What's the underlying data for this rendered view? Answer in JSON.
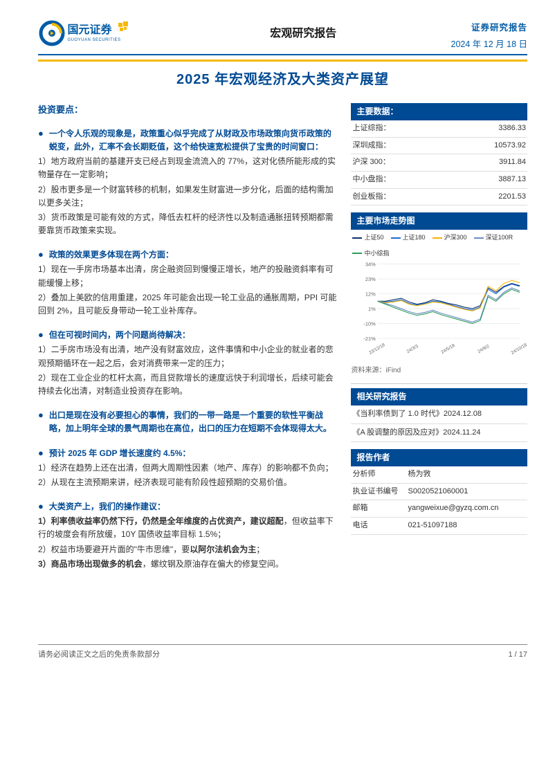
{
  "header": {
    "brand_cn": "国元证券",
    "brand_en": "GUOYUAN SECURITIES",
    "logo_circle": "#005ba6",
    "logo_accent": "#f6b800",
    "center_title": "宏观研究报告",
    "right_top": "证券研究报告",
    "date": "2024 年 12 月 18 日",
    "main_title": "2025 年宏观经济及大类资产展望",
    "accent_bar": "#f6b800",
    "underline": "#005ba6"
  },
  "left": {
    "section_title": "投资要点：",
    "g1": {
      "head": "一个令人乐观的现象是，政策重心似乎完成了从财政及市场政策向货币政策的蜕变，此外，汇率不会长期贬值，这个给快速宽松提供了宝贵的时间窗口：",
      "p1": "1）地方政府当前的基建开支已经占到现金流流入的 77%，这对化债所能形成的实物量存在一定影响；",
      "p2": "2）股市更多是一个财富转移的机制，如果发生财富进一步分化，后面的结构需加以更多关注；",
      "p3": "3）货币政策是可能有效的方式，降低去杠杆的经济性以及制造通胀扭转预期都需要靠货币政策来实现。"
    },
    "g2": {
      "head": "政策的效果更多体现在两个方面：",
      "p1": "1）现在一手房市场基本出清，房企融资回到慢慢正增长，地产的投融资斜率有可能缓慢上移；",
      "p2": "2）叠加上美欧的信用重建，2025 年可能会出现一轮工业品的通胀周期，PPI 可能回到 2%，且可能反身带动一轮工业补库存。"
    },
    "g3": {
      "head": "但在可视时间内，两个问题尚待解决：",
      "p1": "1）二手房市场没有出清，地产没有财富效应，这件事情和中小企业的就业者的悲观预期循环在一起之后，会对消费带来一定的压力；",
      "p2": "2）现在工业企业的杠杆太高，而且贷款增长的速度远快于利润增长，后续可能会持续去化出清，对制造业投资存在影响。"
    },
    "g4": {
      "head": "出口是现在没有必要担心的事情，我们的一带一路是一个重要的软性平衡战略，加上明年全球的景气周期也在高位，出口的压力在短期不会体现得太大。"
    },
    "g5": {
      "head": "预计 2025 年 GDP 增长速度约 4.5%：",
      "p1": "1）经济在趋势上还在出清，但两大周期性因素（地产、库存）的影响都不负向；",
      "p2": "2）从现在主流预期来讲，经济表现可能有阶段性超预期的交易价值。"
    },
    "g6": {
      "head": "大类资产上，我们的操作建议：",
      "p1a": "1）利率债收益率仍然下行，仍然是全年维度的占优资产，建议超配",
      "p1b": "，但收益率下行的坡度会有所放缓，10Y 国债收益率目标 1.5%；",
      "p2a": "2）权益市场要避开片面的\"牛市思维\"，要",
      "p2b": "以阿尔法机会为主",
      "p2c": "；",
      "p3a": "3）商品市场出现做多的机会",
      "p3b": "，螺纹钢及原油存在偏大的修复空间。"
    }
  },
  "right": {
    "data_header": "主要数据：",
    "data_rows": [
      {
        "label": "上证综指：",
        "value": "3386.33"
      },
      {
        "label": "深圳成指：",
        "value": "10573.92"
      },
      {
        "label": "沪深 300：",
        "value": "3911.84"
      },
      {
        "label": "中小盘指：",
        "value": "3887.13"
      },
      {
        "label": "创业板指：",
        "value": "2201.53"
      }
    ],
    "chart_header": "主要市场走势图",
    "chart": {
      "legend": [
        {
          "label": "上证50",
          "color": "#0a2f6b"
        },
        {
          "label": "上证180",
          "color": "#1e6bd6"
        },
        {
          "label": "沪深300",
          "color": "#f5b400"
        },
        {
          "label": "深证100R",
          "color": "#6a8bc4"
        },
        {
          "label": "中小综指",
          "color": "#2e9b5c"
        }
      ],
      "y_ticks": [
        "34%",
        "23%",
        "12%",
        "1%",
        "-10%",
        "-21%"
      ],
      "x_ticks": [
        "23/12/18",
        "24/3/3",
        "24/5/18",
        "24/8/2",
        "24/10/18"
      ],
      "grid_color": "#d9d9d9",
      "bg": "#ffffff",
      "series": {
        "s1": {
          "color": "#0a2f6b",
          "points": [
            0.5,
            0.5,
            0.52,
            0.54,
            0.49,
            0.46,
            0.48,
            0.52,
            0.5,
            0.47,
            0.45,
            0.42,
            0.4,
            0.44,
            0.68,
            0.62,
            0.7,
            0.74,
            0.71
          ]
        },
        "s2": {
          "color": "#1e6bd6",
          "points": [
            0.5,
            0.49,
            0.5,
            0.52,
            0.47,
            0.45,
            0.47,
            0.5,
            0.49,
            0.46,
            0.43,
            0.4,
            0.38,
            0.42,
            0.66,
            0.6,
            0.69,
            0.73,
            0.7
          ]
        },
        "s3": {
          "color": "#f5b400",
          "points": [
            0.5,
            0.48,
            0.49,
            0.51,
            0.46,
            0.44,
            0.46,
            0.49,
            0.48,
            0.45,
            0.42,
            0.39,
            0.37,
            0.41,
            0.7,
            0.64,
            0.74,
            0.78,
            0.75
          ]
        },
        "s4": {
          "color": "#6a8bc4",
          "points": [
            0.5,
            0.47,
            0.44,
            0.4,
            0.36,
            0.33,
            0.35,
            0.38,
            0.34,
            0.31,
            0.28,
            0.25,
            0.22,
            0.26,
            0.58,
            0.52,
            0.62,
            0.68,
            0.64
          ]
        },
        "s5": {
          "color": "#2e9b5c",
          "points": [
            0.5,
            0.46,
            0.42,
            0.38,
            0.34,
            0.31,
            0.33,
            0.36,
            0.32,
            0.29,
            0.26,
            0.23,
            0.2,
            0.24,
            0.56,
            0.5,
            0.6,
            0.66,
            0.62
          ]
        }
      },
      "source": "资料来源：iFind"
    },
    "related_header": "相关研究报告",
    "related": [
      "《当利率债到了 1.0 时代》2024.12.08",
      "《A 股调整的原因及应对》2024.11.24"
    ],
    "author_header": "报告作者",
    "author_rows": [
      {
        "label": "分析师",
        "value": "杨为敩"
      },
      {
        "label": "执业证书编号",
        "value": "S0020521060001"
      },
      {
        "label": "邮箱",
        "value": "yangweixue@gyzq.com.cn"
      },
      {
        "label": "电话",
        "value": "021-51097188"
      }
    ]
  },
  "footer": {
    "left": "请务必阅读正文之后的免责条款部分",
    "right": "1 / 17"
  }
}
